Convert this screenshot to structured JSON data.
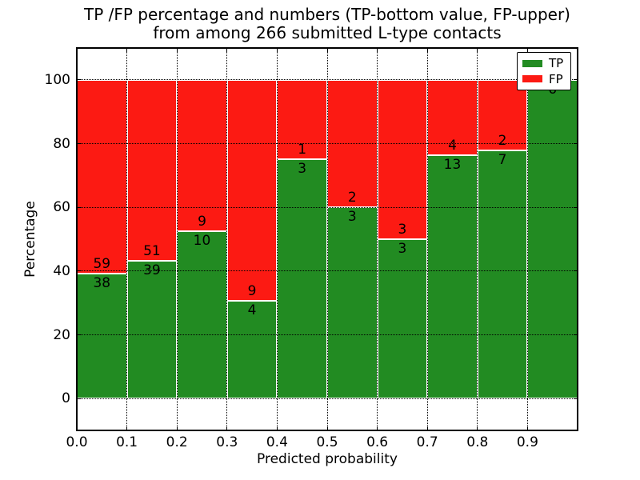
{
  "figure": {
    "title_line1": "TP /FP percentage and numbers (TP-bottom value, FP-upper)",
    "title_line2": "from among 266 submitted L-type contacts"
  },
  "chart_data": {
    "type": "bar",
    "stacked": true,
    "title": "TP /FP percentage and numbers (TP-bottom value, FP-upper) from among 266 submitted L-type contacts",
    "xlabel": "Predicted probability",
    "ylabel": "Percentage",
    "xlim": [
      0.0,
      1.0
    ],
    "ylim": [
      -10,
      110
    ],
    "xticks": [
      "0.0",
      "0.1",
      "0.2",
      "0.3",
      "0.4",
      "0.5",
      "0.6",
      "0.7",
      "0.8",
      "0.9"
    ],
    "yticks": [
      0,
      20,
      40,
      60,
      80,
      100
    ],
    "grid": "dotted, drawn over bars",
    "bins": [
      "0.0-0.1",
      "0.1-0.2",
      "0.2-0.3",
      "0.3-0.4",
      "0.4-0.5",
      "0.5-0.6",
      "0.6-0.7",
      "0.7-0.8",
      "0.8-0.9",
      "0.9-1.0"
    ],
    "series": [
      {
        "name": "TP",
        "color": "#228b22",
        "counts": [
          38,
          39,
          10,
          4,
          3,
          3,
          3,
          13,
          7,
          6
        ]
      },
      {
        "name": "FP",
        "color": "#fc1a13",
        "counts": [
          59,
          51,
          9,
          9,
          1,
          2,
          3,
          4,
          2,
          0
        ]
      }
    ],
    "tp_percentages": [
      39.18,
      43.33,
      52.63,
      30.77,
      75.0,
      60.0,
      50.0,
      76.47,
      77.78,
      100.0
    ],
    "total_contacts": 266,
    "legend": {
      "position": "upper right",
      "entries": [
        {
          "label": "TP",
          "color": "#228b22"
        },
        {
          "label": "FP",
          "color": "#fc1a13"
        }
      ]
    }
  }
}
